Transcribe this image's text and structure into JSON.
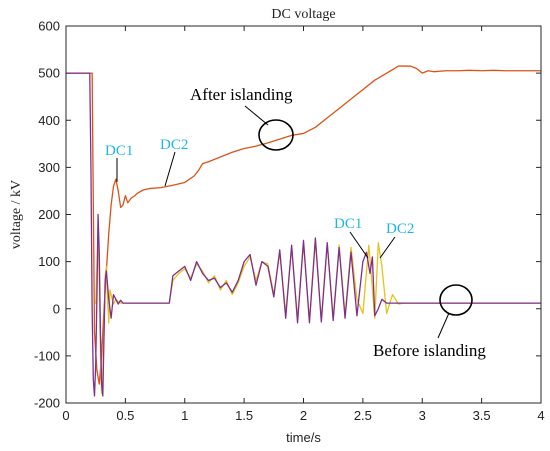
{
  "chart_data": {
    "type": "line",
    "title": "DC voltage",
    "xlabel": "time/s",
    "ylabel": "voltage / kV",
    "xlim": [
      0,
      4
    ],
    "ylim": [
      -200,
      600
    ],
    "xticks": [
      0,
      0.5,
      1,
      1.5,
      2,
      2.5,
      3,
      3.5,
      4
    ],
    "xtick_labels": [
      "0",
      "0.5",
      "1",
      "1.5",
      "2",
      "2.5",
      "3",
      "3.5",
      "4"
    ],
    "yticks": [
      -200,
      -100,
      0,
      100,
      200,
      300,
      400,
      500,
      600
    ],
    "ytick_labels": [
      "-200",
      "-100",
      "0",
      "100",
      "200",
      "300",
      "400",
      "500",
      "600"
    ],
    "grid": false,
    "series": [
      {
        "color": "#d95319",
        "x": [
          0,
          0.2,
          0.22,
          0.24,
          0.26,
          0.28,
          0.3,
          0.32,
          0.34,
          0.36,
          0.38,
          0.4,
          0.42,
          0.44,
          0.46,
          0.48,
          0.5,
          0.52,
          0.55,
          0.58,
          0.6,
          0.65,
          0.7,
          0.8,
          0.9,
          1.0,
          1.08,
          1.12,
          1.15,
          1.2,
          1.3,
          1.4,
          1.5,
          1.6,
          1.7,
          1.8,
          1.9,
          2.0,
          2.1,
          2.2,
          2.3,
          2.4,
          2.5,
          2.6,
          2.7,
          2.8,
          2.85,
          2.9,
          2.95,
          3.0,
          3.05,
          3.1,
          3.2,
          3.3,
          3.4,
          3.5,
          3.6,
          3.7,
          3.8,
          3.9,
          4.0
        ],
        "y": [
          500,
          500,
          500,
          -50,
          -130,
          -160,
          -100,
          0,
          80,
          160,
          220,
          260,
          275,
          250,
          215,
          220,
          240,
          225,
          235,
          240,
          245,
          252,
          255,
          257,
          262,
          268,
          282,
          295,
          308,
          312,
          322,
          332,
          340,
          345,
          352,
          360,
          368,
          372,
          385,
          405,
          425,
          445,
          465,
          485,
          500,
          515,
          515,
          515,
          510,
          500,
          505,
          503,
          505,
          505,
          506,
          505,
          506,
          505,
          505,
          505,
          505
        ]
      },
      {
        "color": "#e6c21a",
        "x": [
          0.25,
          0.26,
          0.27,
          0.28,
          0.29,
          0.3,
          0.31,
          0.32,
          0.33,
          0.34,
          0.35,
          0.36,
          0.37,
          0.38,
          0.4,
          0.42,
          0.44,
          0.46,
          0.48,
          0.5,
          0.55,
          0.6,
          0.65,
          0.7,
          0.8,
          0.87,
          0.9,
          0.95,
          1.0,
          1.05,
          1.1,
          1.15,
          1.2,
          1.25,
          1.3,
          1.35,
          1.4,
          1.45,
          1.5,
          1.55,
          1.6,
          1.65,
          1.7,
          1.75,
          1.8,
          1.85,
          1.9,
          1.95,
          2.0,
          2.05,
          2.1,
          2.15,
          2.2,
          2.25,
          2.3,
          2.35,
          2.4,
          2.45,
          2.5,
          2.55,
          2.6,
          2.63,
          2.66,
          2.7,
          2.75,
          2.8,
          2.85,
          3.0,
          3.5,
          4.0
        ],
        "y": [
          10,
          80,
          180,
          60,
          -100,
          -180,
          -150,
          -40,
          70,
          90,
          20,
          -30,
          40,
          30,
          10,
          20,
          15,
          12,
          12,
          12,
          12,
          12,
          12,
          12,
          12,
          12,
          60,
          75,
          85,
          65,
          95,
          80,
          55,
          70,
          40,
          60,
          30,
          55,
          90,
          110,
          60,
          100,
          95,
          30,
          120,
          -10,
          130,
          -20,
          140,
          -25,
          145,
          -25,
          140,
          -20,
          135,
          -15,
          130,
          20,
          -10,
          135,
          -20,
          140,
          90,
          -10,
          30,
          10,
          12,
          12,
          12,
          12
        ]
      },
      {
        "color": "#7e2f8e",
        "x": [
          0,
          0.2,
          0.21,
          0.22,
          0.23,
          0.24,
          0.25,
          0.26,
          0.27,
          0.28,
          0.29,
          0.3,
          0.31,
          0.32,
          0.33,
          0.34,
          0.36,
          0.38,
          0.4,
          0.42,
          0.44,
          0.46,
          0.48,
          0.5,
          0.55,
          0.6,
          0.65,
          0.7,
          0.8,
          0.87,
          0.9,
          0.95,
          1.0,
          1.05,
          1.1,
          1.15,
          1.2,
          1.25,
          1.3,
          1.35,
          1.4,
          1.45,
          1.5,
          1.55,
          1.6,
          1.65,
          1.7,
          1.75,
          1.8,
          1.85,
          1.9,
          1.95,
          2.0,
          2.05,
          2.1,
          2.15,
          2.2,
          2.25,
          2.3,
          2.35,
          2.4,
          2.45,
          2.5,
          2.53,
          2.56,
          2.58,
          2.6,
          2.63,
          2.66,
          2.7,
          2.75,
          2.8,
          3.0,
          3.5,
          4.0
        ],
        "y": [
          500,
          500,
          300,
          0,
          -150,
          -185,
          -120,
          20,
          200,
          120,
          -50,
          -160,
          -185,
          -60,
          60,
          80,
          20,
          -20,
          30,
          20,
          10,
          18,
          12,
          12,
          12,
          12,
          12,
          12,
          12,
          12,
          70,
          80,
          90,
          60,
          100,
          75,
          60,
          65,
          45,
          55,
          35,
          60,
          100,
          115,
          50,
          100,
          90,
          25,
          125,
          -20,
          135,
          -30,
          145,
          -30,
          150,
          -28,
          140,
          -25,
          130,
          -20,
          120,
          -15,
          100,
          120,
          75,
          110,
          -15,
          0,
          20,
          12,
          12,
          12,
          12,
          12,
          12
        ]
      }
    ],
    "annotations": [
      {
        "text": "After islanding",
        "color": "#000000"
      },
      {
        "text": "Before islanding",
        "color": "#000000"
      },
      {
        "text": "DC1",
        "color": "#1fb4e6"
      },
      {
        "text": "DC2",
        "color": "#1fb4e6"
      },
      {
        "text": "DC1",
        "color": "#1fb4e6"
      },
      {
        "text": "DC2",
        "color": "#1fb4e6"
      }
    ]
  }
}
